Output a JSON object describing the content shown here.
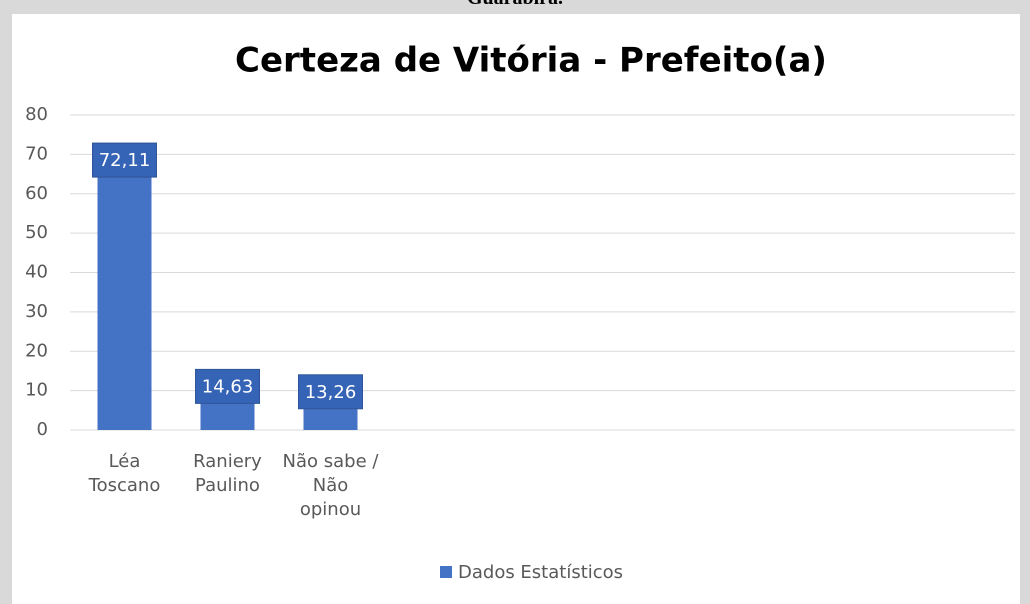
{
  "caption": "Guarabira.",
  "chart_data": {
    "type": "bar",
    "title": "Certeza de Vitória - Prefeito(a)",
    "categories": [
      "Léa Toscano",
      "Raniery Paulino",
      "Não sabe / Não opinou"
    ],
    "series": [
      {
        "name": "Dados Estatísticos",
        "color": "#4472c4",
        "values": [
          72.11,
          14.63,
          13.26
        ],
        "value_labels": [
          "72,11",
          "14,63",
          "13,26"
        ]
      }
    ],
    "ylim": [
      0,
      80
    ],
    "yticks": [
      0,
      10,
      20,
      30,
      40,
      50,
      60,
      70,
      80
    ],
    "grid": true,
    "legend": "bottom"
  }
}
